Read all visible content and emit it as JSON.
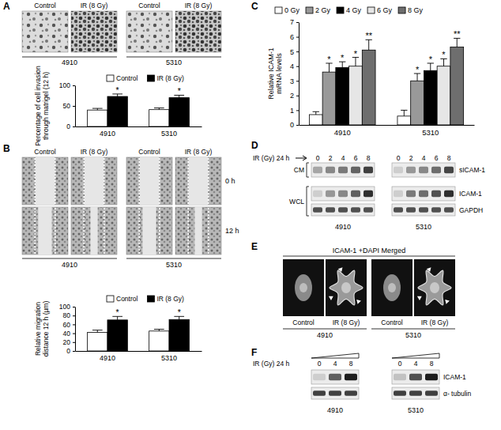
{
  "chart_data": [
    {
      "type": "bar",
      "y_label": [
        "Percentage of cell invasion",
        "through matrigel (12 h)"
      ],
      "categories": [
        "4910",
        "5310"
      ],
      "series": [
        {
          "name": "Control",
          "color": "#ffffff",
          "values": [
            40,
            41
          ],
          "errors": [
            4,
            4
          ]
        },
        {
          "name": "IR (8 Gy)",
          "color": "#000000",
          "values": [
            73,
            70
          ],
          "errors": [
            6,
            6
          ],
          "annotations": [
            "*",
            "*"
          ]
        }
      ],
      "ylim": [
        0,
        100
      ],
      "yticks": [
        0,
        50,
        100
      ],
      "legend": "top"
    },
    {
      "type": "bar",
      "y_label": [
        "Relative migration",
        "distance 12 h (µm)"
      ],
      "categories": [
        "4910",
        "5310"
      ],
      "series": [
        {
          "name": "Control",
          "color": "#ffffff",
          "values": [
            42,
            45
          ],
          "errors": [
            5,
            4
          ]
        },
        {
          "name": "IR (8 Gy)",
          "color": "#000000",
          "values": [
            70,
            71
          ],
          "errors": [
            8,
            7
          ],
          "annotations": [
            "*",
            "*"
          ]
        }
      ],
      "ylim": [
        0,
        100
      ],
      "yticks": [
        0,
        20,
        40,
        60,
        80,
        100
      ],
      "legend": "top"
    },
    {
      "type": "bar",
      "y_label": [
        "Relative ICAM-1",
        "mRNA levels"
      ],
      "categories": [
        "4910",
        "5310"
      ],
      "series": [
        {
          "name": "0 Gy",
          "color": "#ffffff",
          "values": [
            0.7,
            0.6
          ],
          "errors": [
            0.2,
            0.4
          ]
        },
        {
          "name": "2 Gy",
          "color": "#999999",
          "values": [
            3.6,
            3.0
          ],
          "errors": [
            0.6,
            0.5
          ],
          "annotations": [
            "*",
            "*"
          ]
        },
        {
          "name": "4 Gy",
          "color": "#000000",
          "values": [
            3.9,
            3.7
          ],
          "errors": [
            0.4,
            0.5
          ],
          "annotations": [
            "*",
            "*"
          ]
        },
        {
          "name": "6 Gy",
          "color": "#e6e6e6",
          "values": [
            4.0,
            4.0
          ],
          "errors": [
            0.6,
            0.5
          ],
          "annotations": [
            "*",
            "*"
          ]
        },
        {
          "name": "8 Gy",
          "color": "#6e6e6e",
          "values": [
            5.1,
            5.3
          ],
          "errors": [
            0.7,
            0.6
          ],
          "annotations": [
            "**",
            "**"
          ]
        }
      ],
      "ylim": [
        0,
        7
      ],
      "yticks": [
        0,
        1,
        2,
        3,
        4,
        5,
        6,
        7
      ],
      "legend": "top"
    }
  ],
  "figure": {
    "panel_letters": [
      "A",
      "B",
      "C",
      "D",
      "E",
      "F"
    ],
    "image_panels": {
      "A": {
        "columns": [
          "Control",
          "IR (8 Gy)",
          "Control",
          "IR (8 Gy)"
        ],
        "groups": [
          "4910",
          "5310"
        ]
      },
      "B": {
        "columns": [
          "Control",
          "IR (8 Gy)",
          "Control",
          "IR (8 Gy)"
        ],
        "groups": [
          "4910",
          "5310"
        ],
        "rows": [
          "0 h",
          "12 h"
        ]
      },
      "E": {
        "title": "ICAM-1 +DAPI Merged",
        "columns": [
          "Control",
          "IR (8 Gy)",
          "Control",
          "IR (8 Gy)"
        ],
        "groups": [
          "4910",
          "5310"
        ]
      }
    },
    "blots": {
      "D": {
        "treatment": "IR (Gy) 24 h",
        "doses": [
          0,
          2,
          4,
          6,
          8
        ],
        "groups": [
          "4910",
          "5310"
        ],
        "rows": [
          {
            "label": "sICAM-1",
            "intensity": [
              [
                0.45,
                0.55,
                0.6,
                0.68,
                0.8
              ],
              [
                0.3,
                0.5,
                0.55,
                0.65,
                0.78
              ]
            ]
          },
          {
            "label": "ICAM-1",
            "intensity": [
              [
                0.3,
                0.5,
                0.55,
                0.7,
                0.85
              ],
              [
                0.3,
                0.6,
                0.65,
                0.75,
                0.85
              ]
            ]
          },
          {
            "label": "GAPDH",
            "intensity": [
              [
                0.75,
                0.75,
                0.75,
                0.75,
                0.75
              ],
              [
                0.75,
                0.75,
                0.75,
                0.75,
                0.75
              ]
            ]
          }
        ],
        "sections": [
          {
            "label": "CM",
            "rows": [
              "sICAM-1"
            ]
          },
          {
            "label": "WCL",
            "rows": [
              "ICAM-1",
              "GAPDH"
            ]
          }
        ]
      },
      "F": {
        "treatment": "IR (Gy) 24 h",
        "doses": [
          0,
          4,
          8
        ],
        "groups": [
          "4910",
          "5310"
        ],
        "rows": [
          {
            "label": "ICAM-1",
            "intensity": [
              [
                0.3,
                0.7,
                0.9
              ],
              [
                0.35,
                0.75,
                0.9
              ]
            ]
          },
          {
            "label": "α- tubulin",
            "intensity": [
              [
                0.8,
                0.8,
                0.8
              ],
              [
                0.8,
                0.8,
                0.8
              ]
            ]
          }
        ]
      }
    }
  }
}
